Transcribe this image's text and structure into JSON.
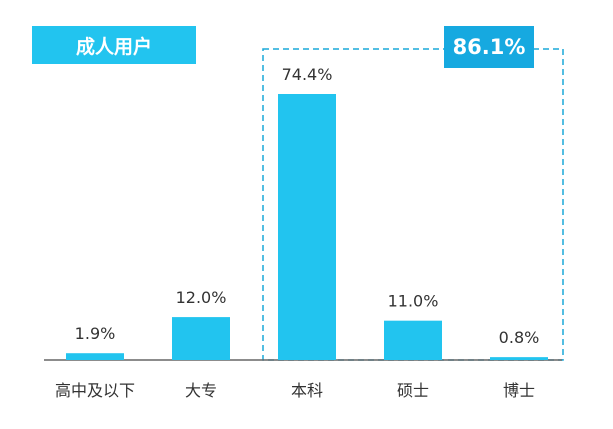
{
  "title": "成人用户",
  "highlight": {
    "label": "86.1%",
    "from_category": "本科",
    "to_category": "博士"
  },
  "chart_data": {
    "type": "bar",
    "title": "成人用户",
    "categories": [
      "高中及以下",
      "大专",
      "本科",
      "硕士",
      "博士"
    ],
    "values": [
      1.9,
      12.0,
      74.4,
      11.0,
      0.8
    ],
    "data_labels": [
      "1.9%",
      "12.0%",
      "74.4%",
      "11.0%",
      "0.8%"
    ],
    "xlabel": "",
    "ylabel": "",
    "ylim": [
      0,
      74.4
    ],
    "grid": false,
    "legend": "none"
  },
  "colors": {
    "bar": "#22c4ef",
    "badge": "#22c4ef",
    "highlight_badge": "#16a9e0",
    "highlight_border": "#1aa8d8",
    "axis": "#666666"
  }
}
